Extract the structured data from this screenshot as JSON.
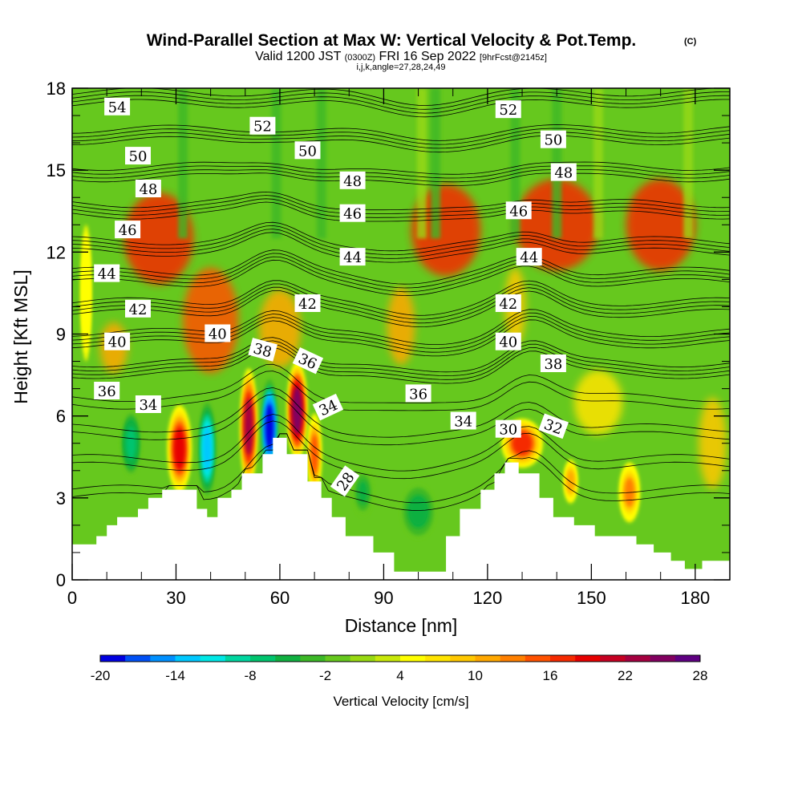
{
  "chart_data": {
    "type": "heatmap",
    "title": "Wind-Parallel Section at Max W: Vertical Velocity & Pot.Temp.",
    "title_mark": "(C)",
    "subtitle_parts": [
      "Valid 1200 JST",
      "(0300Z)",
      "FRI 16 Sep 2022",
      "[9hrFcst@2145z]"
    ],
    "subtitle2": "i,j,k,angle=27,28,24,49",
    "xlabel": "Distance [nm]",
    "ylabel": "Height [Kft MSL]",
    "xlim": [
      0,
      190
    ],
    "ylim": [
      0,
      18
    ],
    "xticks": [
      0,
      30,
      60,
      90,
      120,
      150,
      180
    ],
    "yticks": [
      0,
      3,
      6,
      9,
      12,
      15,
      18
    ],
    "terrain": {
      "distance_nm": [
        0,
        7,
        7,
        10,
        10,
        13,
        13,
        19,
        19,
        22,
        22,
        26,
        26,
        36,
        36,
        39,
        39,
        42,
        42,
        46,
        46,
        49,
        49,
        55,
        55,
        58,
        58,
        62,
        62,
        68,
        68,
        72,
        72,
        75,
        75,
        79,
        79,
        87,
        87,
        93,
        93,
        108,
        108,
        112,
        112,
        118,
        118,
        122,
        122,
        125,
        125,
        129,
        129,
        135,
        135,
        139,
        139,
        145,
        145,
        151,
        151,
        163,
        163,
        168,
        168,
        173,
        173,
        177,
        177,
        182,
        182,
        190
      ],
      "height_kft": [
        1.3,
        1.3,
        1.6,
        1.6,
        2.0,
        2.0,
        2.3,
        2.3,
        2.6,
        2.6,
        3.0,
        3.0,
        3.3,
        3.3,
        2.6,
        2.6,
        2.3,
        2.3,
        3.0,
        3.0,
        3.3,
        3.3,
        3.9,
        3.9,
        4.6,
        4.6,
        5.2,
        5.2,
        4.6,
        4.6,
        3.6,
        3.6,
        3.0,
        3.0,
        2.3,
        2.3,
        1.6,
        1.6,
        1.0,
        1.0,
        0.3,
        0.3,
        1.6,
        1.6,
        2.6,
        2.6,
        3.3,
        3.3,
        3.9,
        3.9,
        4.3,
        4.3,
        3.9,
        3.9,
        3.0,
        3.0,
        2.3,
        2.3,
        2.0,
        2.0,
        1.6,
        1.6,
        1.3,
        1.3,
        1.0,
        1.0,
        0.7,
        0.7,
        0.4,
        0.4,
        0.7,
        0.7
      ]
    },
    "updrafts": [
      {
        "x_nm": 31,
        "height_kft": 4.8,
        "width_nm": 7,
        "depth_kft": 3.2,
        "w_cm_s": 18
      },
      {
        "x_nm": 51,
        "height_kft": 5.6,
        "width_nm": 5,
        "depth_kft": 4.3,
        "w_cm_s": 22
      },
      {
        "x_nm": 65,
        "height_kft": 6.2,
        "width_nm": 6,
        "depth_kft": 3.6,
        "w_cm_s": 24
      },
      {
        "x_nm": 70,
        "height_kft": 4.6,
        "width_nm": 4,
        "depth_kft": 3.0,
        "w_cm_s": 14
      },
      {
        "x_nm": 130,
        "height_kft": 5.0,
        "width_nm": 12,
        "depth_kft": 1.8,
        "w_cm_s": 16
      },
      {
        "x_nm": 144,
        "height_kft": 3.6,
        "width_nm": 4,
        "depth_kft": 1.6,
        "w_cm_s": 10
      },
      {
        "x_nm": 161,
        "height_kft": 3.2,
        "width_nm": 6,
        "depth_kft": 2.2,
        "w_cm_s": 12
      },
      {
        "x_nm": 4,
        "height_kft": 10.5,
        "width_nm": 3,
        "depth_kft": 5.0,
        "w_cm_s": 2
      }
    ],
    "downdrafts": [
      {
        "x_nm": 39,
        "height_kft": 4.8,
        "width_nm": 5,
        "depth_kft": 3.4,
        "w_cm_s": -14
      },
      {
        "x_nm": 57,
        "height_kft": 5.6,
        "width_nm": 5,
        "depth_kft": 3.5,
        "w_cm_s": -20
      },
      {
        "x_nm": 17,
        "height_kft": 5.0,
        "width_nm": 6,
        "depth_kft": 2.5,
        "w_cm_s": -7
      },
      {
        "x_nm": 100,
        "height_kft": 2.5,
        "width_nm": 10,
        "depth_kft": 2.0,
        "w_cm_s": -6
      },
      {
        "x_nm": 84,
        "height_kft": 3.2,
        "width_nm": 6,
        "depth_kft": 1.8,
        "w_cm_s": -5
      }
    ],
    "colorbar": {
      "label": "Vertical Velocity [cm/s]",
      "ticks": [
        -20,
        -14,
        -8,
        -2,
        4,
        10,
        16,
        22,
        28
      ],
      "colors": [
        "#0000e0",
        "#0050f5",
        "#0090ff",
        "#00c8ff",
        "#00e8e6",
        "#00d6a0",
        "#00c46e",
        "#10b040",
        "#3cb827",
        "#66c81e",
        "#98d912",
        "#c8e80a",
        "#ffff00",
        "#ffe400",
        "#ffc800",
        "#ffa800",
        "#ff8000",
        "#ff5200",
        "#f52a00",
        "#e60000",
        "#c60022",
        "#a50040",
        "#820060",
        "#5f0082"
      ]
    },
    "isentropes_c": [
      28,
      30,
      32,
      34,
      36,
      38,
      40,
      42,
      44,
      46,
      48,
      50,
      52,
      54
    ],
    "isentrope_labels": [
      {
        "text": "54",
        "x_nm": 13,
        "y_kft": 17.3,
        "angle": 0
      },
      {
        "text": "52",
        "x_nm": 55,
        "y_kft": 16.6,
        "angle": 0
      },
      {
        "text": "52",
        "x_nm": 126,
        "y_kft": 17.2,
        "angle": 0
      },
      {
        "text": "50",
        "x_nm": 19,
        "y_kft": 15.5,
        "angle": 0
      },
      {
        "text": "50",
        "x_nm": 68,
        "y_kft": 15.7,
        "angle": 0
      },
      {
        "text": "50",
        "x_nm": 139,
        "y_kft": 16.1,
        "angle": 0
      },
      {
        "text": "48",
        "x_nm": 22,
        "y_kft": 14.3,
        "angle": 0
      },
      {
        "text": "48",
        "x_nm": 81,
        "y_kft": 14.6,
        "angle": 0
      },
      {
        "text": "48",
        "x_nm": 142,
        "y_kft": 14.9,
        "angle": 0
      },
      {
        "text": "46",
        "x_nm": 16,
        "y_kft": 12.8,
        "angle": 0
      },
      {
        "text": "46",
        "x_nm": 81,
        "y_kft": 13.4,
        "angle": 0
      },
      {
        "text": "46",
        "x_nm": 129,
        "y_kft": 13.5,
        "angle": 0
      },
      {
        "text": "44",
        "x_nm": 10,
        "y_kft": 11.2,
        "angle": 0
      },
      {
        "text": "44",
        "x_nm": 81,
        "y_kft": 11.8,
        "angle": 0
      },
      {
        "text": "44",
        "x_nm": 132,
        "y_kft": 11.8,
        "angle": 0
      },
      {
        "text": "42",
        "x_nm": 19,
        "y_kft": 9.9,
        "angle": 0
      },
      {
        "text": "42",
        "x_nm": 68,
        "y_kft": 10.1,
        "angle": 0
      },
      {
        "text": "42",
        "x_nm": 126,
        "y_kft": 10.1,
        "angle": 0
      },
      {
        "text": "40",
        "x_nm": 13,
        "y_kft": 8.7,
        "angle": 0
      },
      {
        "text": "40",
        "x_nm": 42,
        "y_kft": 9.0,
        "angle": 0
      },
      {
        "text": "40",
        "x_nm": 126,
        "y_kft": 8.7,
        "angle": 0
      },
      {
        "text": "38",
        "x_nm": 55,
        "y_kft": 8.4,
        "angle": 15
      },
      {
        "text": "38",
        "x_nm": 139,
        "y_kft": 7.9,
        "angle": 0
      },
      {
        "text": "36",
        "x_nm": 68,
        "y_kft": 8.0,
        "angle": 25
      },
      {
        "text": "36",
        "x_nm": 10,
        "y_kft": 6.9,
        "angle": 0
      },
      {
        "text": "36",
        "x_nm": 100,
        "y_kft": 6.8,
        "angle": 0
      },
      {
        "text": "34",
        "x_nm": 22,
        "y_kft": 6.4,
        "angle": 0
      },
      {
        "text": "34",
        "x_nm": 74,
        "y_kft": 6.3,
        "angle": -25
      },
      {
        "text": "34",
        "x_nm": 113,
        "y_kft": 5.8,
        "angle": 0
      },
      {
        "text": "32",
        "x_nm": 139,
        "y_kft": 5.6,
        "angle": 20
      },
      {
        "text": "30",
        "x_nm": 126,
        "y_kft": 5.5,
        "angle": 0
      },
      {
        "text": "28",
        "x_nm": 79,
        "y_kft": 3.6,
        "angle": -55
      }
    ],
    "grid": false,
    "legend": "bottom colorbar"
  }
}
